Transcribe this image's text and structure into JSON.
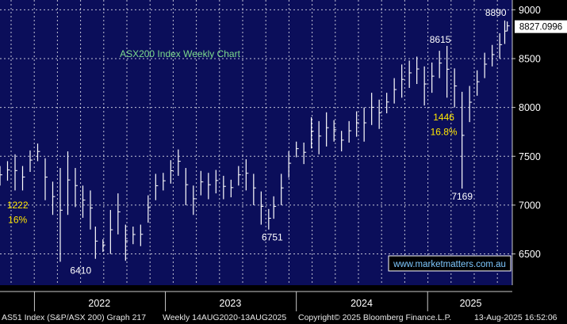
{
  "chart_data": {
    "type": "candlestick",
    "title": "ASX200 Index Weekly Chart",
    "title_color": "#7ddc8c",
    "ylim": [
      6180,
      9100
    ],
    "y_ticks": [
      6500,
      7000,
      7500,
      8000,
      8500,
      9000
    ],
    "y_tick_labels": [
      "6500",
      "7000",
      "7500",
      "8000",
      "8500",
      "9000"
    ],
    "x_range": [
      "2021-09-27",
      "2025-08-25"
    ],
    "x_year_labels": [
      {
        "label": "2022",
        "center": "2022-07-01"
      },
      {
        "label": "2023",
        "center": "2023-07-01"
      },
      {
        "label": "2024",
        "center": "2024-07-01"
      },
      {
        "label": "2025",
        "center": "2025-05-01"
      }
    ],
    "year_boundaries": [
      "2022-01-01",
      "2023-01-01",
      "2024-01-01",
      "2025-01-01"
    ],
    "grid": true,
    "last_price": {
      "value": 8827.0996,
      "label": "8827.0996"
    },
    "series": [
      {
        "type": "weekly_hl",
        "x": [
          "2021-09-27",
          "2021-10-18",
          "2021-11-08",
          "2021-11-29",
          "2021-12-20",
          "2022-01-10",
          "2022-01-31",
          "2022-02-21",
          "2022-03-14",
          "2022-04-04",
          "2022-04-25",
          "2022-05-16",
          "2022-06-06",
          "2022-06-20",
          "2022-07-11",
          "2022-08-01",
          "2022-08-22",
          "2022-09-12",
          "2022-10-03",
          "2022-10-24",
          "2022-11-14",
          "2022-12-05",
          "2022-12-26",
          "2023-01-16",
          "2023-02-06",
          "2023-02-27",
          "2023-03-20",
          "2023-04-10",
          "2023-05-01",
          "2023-05-22",
          "2023-06-12",
          "2023-07-03",
          "2023-07-24",
          "2023-08-14",
          "2023-09-04",
          "2023-09-25",
          "2023-10-16",
          "2023-10-30",
          "2023-11-20",
          "2023-12-11",
          "2024-01-01",
          "2024-01-22",
          "2024-02-12",
          "2024-03-04",
          "2024-03-25",
          "2024-04-15",
          "2024-05-06",
          "2024-05-27",
          "2024-06-17",
          "2024-07-08",
          "2024-07-29",
          "2024-08-19",
          "2024-09-09",
          "2024-09-30",
          "2024-10-21",
          "2024-11-11",
          "2024-12-02",
          "2024-12-23",
          "2025-01-13",
          "2025-02-03",
          "2025-02-24",
          "2025-03-17",
          "2025-04-07",
          "2025-04-28",
          "2025-05-19",
          "2025-06-09",
          "2025-06-30",
          "2025-07-21",
          "2025-08-04",
          "2025-08-11"
        ],
        "high": [
          7400,
          7450,
          7520,
          7400,
          7560,
          7630,
          7480,
          7240,
          7380,
          7550,
          7380,
          7200,
          7150,
          6780,
          6650,
          6950,
          7120,
          6800,
          6780,
          6800,
          7100,
          7320,
          7330,
          7460,
          7570,
          7380,
          7200,
          7350,
          7330,
          7360,
          7300,
          7260,
          7400,
          7470,
          7320,
          7140,
          6960,
          7090,
          7320,
          7550,
          7650,
          7640,
          7900,
          7860,
          7950,
          7870,
          7760,
          7860,
          7960,
          8000,
          8150,
          8080,
          8150,
          8300,
          8440,
          8480,
          8520,
          8420,
          8460,
          8580,
          8630,
          8400,
          8160,
          8220,
          8380,
          8560,
          8640,
          8760,
          8890,
          8880
        ],
        "low": [
          7200,
          7250,
          7150,
          7150,
          7340,
          7450,
          7050,
          6900,
          6420,
          6900,
          6980,
          6870,
          6750,
          6450,
          6520,
          6500,
          6700,
          6430,
          6600,
          6580,
          6820,
          7050,
          7150,
          7220,
          7300,
          7000,
          6900,
          7100,
          7060,
          7120,
          7060,
          7080,
          7200,
          7150,
          7000,
          6800,
          6750,
          6860,
          7000,
          7280,
          7490,
          7420,
          7580,
          7520,
          7600,
          7650,
          7550,
          7640,
          7700,
          7650,
          7820,
          7780,
          7940,
          8040,
          8100,
          8200,
          8240,
          8020,
          8150,
          8300,
          8100,
          8000,
          7169,
          7850,
          8120,
          8300,
          8420,
          8500,
          8650,
          8780
        ]
      }
    ],
    "annotations": [
      {
        "text": "8890",
        "x": "2025-07-10",
        "y": 8890,
        "color": "#ffffff"
      },
      {
        "text": "8615",
        "x": "2025-02-05",
        "y": 8615,
        "color": "#ffffff"
      },
      {
        "text": "7169",
        "x": "2025-04-07",
        "y": 7169,
        "color": "#ffffff"
      },
      {
        "text": "6410",
        "x": "2022-05-10",
        "y": 6410,
        "color": "#ffffff"
      },
      {
        "text": "6751",
        "x": "2023-10-26",
        "y": 6751,
        "color": "#ffffff"
      },
      {
        "text": "1222",
        "x": "2021-11-15",
        "y": 7000,
        "color": "#ffe600"
      },
      {
        "text": "16%",
        "x": "2021-11-15",
        "y": 6850,
        "color": "#ffe600"
      },
      {
        "text": "1446",
        "x": "2025-02-15",
        "y": 7900,
        "color": "#ffe600"
      },
      {
        "text": "16.8%",
        "x": "2025-02-15",
        "y": 7750,
        "color": "#ffe600"
      }
    ],
    "watermark": "www.marketmatters.com.au"
  },
  "footer": {
    "index": "AS51 Index (S&P/ASX 200) Graph 217",
    "period": "Weekly 14AUG2020-13AUG2025",
    "copyright": "Copyright© 2025 Bloomberg Finance.L.P.",
    "timestamp": "13-Aug-2025 16:52:06"
  }
}
